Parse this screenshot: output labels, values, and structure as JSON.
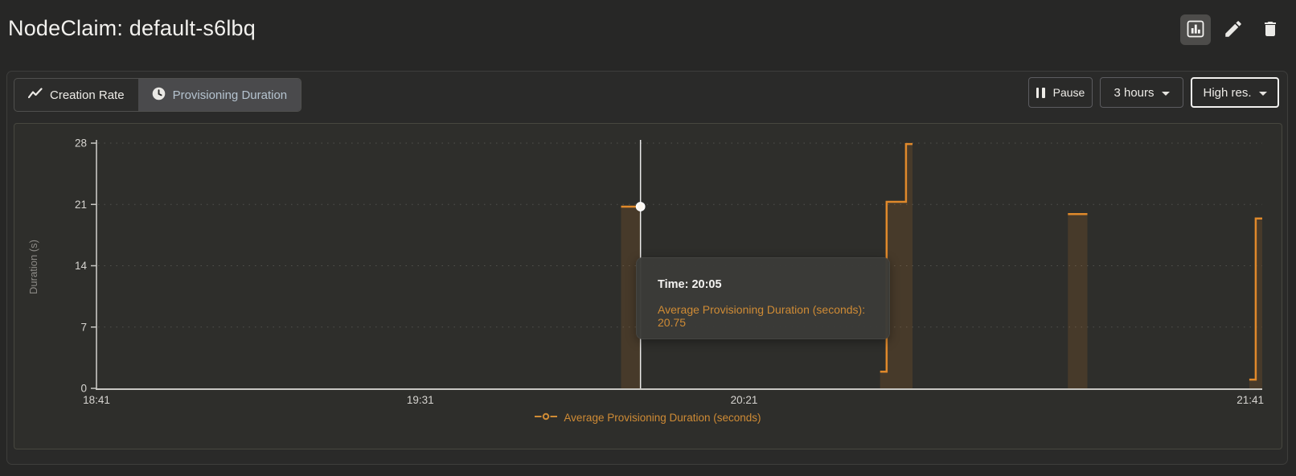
{
  "header": {
    "title": "NodeClaim: default-s6lbq",
    "actions": {
      "chart_view": "chart-view",
      "edit": "edit",
      "delete": "delete"
    }
  },
  "toolbar": {
    "tabs": [
      {
        "label": "Creation Rate",
        "icon": "trend-line-icon",
        "active": false
      },
      {
        "label": "Provisioning Duration",
        "icon": "clock-icon",
        "active": true
      }
    ],
    "pause_label": "Pause",
    "range_label": "3 hours",
    "resolution_label": "High res."
  },
  "tooltip": {
    "time_label": "Time: 20:05",
    "series_label": "Average Provisioning Duration (seconds): 20.75"
  },
  "chart_data": {
    "type": "line",
    "style": "step-area",
    "title": "",
    "xlabel": "",
    "ylabel": "Duration (s)",
    "ylim": [
      0,
      28
    ],
    "y_ticks": [
      0,
      7,
      14,
      21,
      28
    ],
    "x_start": "18:41",
    "x_end": "21:41",
    "x_ticks": [
      "18:41",
      "19:31",
      "20:21",
      "21:41"
    ],
    "grid": "horizontal-dotted",
    "series": [
      {
        "name": "Average Provisioning Duration (seconds)",
        "color": "#e0892b",
        "fill_opacity": 0.14,
        "segments": [
          [
            [
              "20:02",
              20.75
            ],
            [
              "20:05",
              20.75
            ]
          ],
          [
            [
              "20:42",
              1.9
            ],
            [
              "20:43",
              1.9
            ],
            [
              "20:43",
              21.3
            ],
            [
              "20:46",
              21.3
            ],
            [
              "20:46",
              27.9
            ],
            [
              "20:47",
              27.9
            ]
          ],
          [
            [
              "21:11",
              19.9
            ],
            [
              "21:14",
              19.9
            ]
          ],
          [
            [
              "21:39",
              1.0
            ],
            [
              "21:40",
              1.0
            ],
            [
              "21:40",
              19.4
            ],
            [
              "21:41",
              19.4
            ]
          ]
        ]
      }
    ],
    "cursor": {
      "time": "20:05",
      "value": 20.75
    },
    "legend": {
      "label": "Average Provisioning Duration (seconds)",
      "position": "bottom"
    },
    "colors": {
      "accent_orange": "#e0892b",
      "legend_orange": "#cf8b35",
      "axis": "#c9c8c4",
      "tick_text": "#d6d4d0",
      "grid": "#bdbcb4",
      "crosshair": "#ffffff"
    }
  }
}
